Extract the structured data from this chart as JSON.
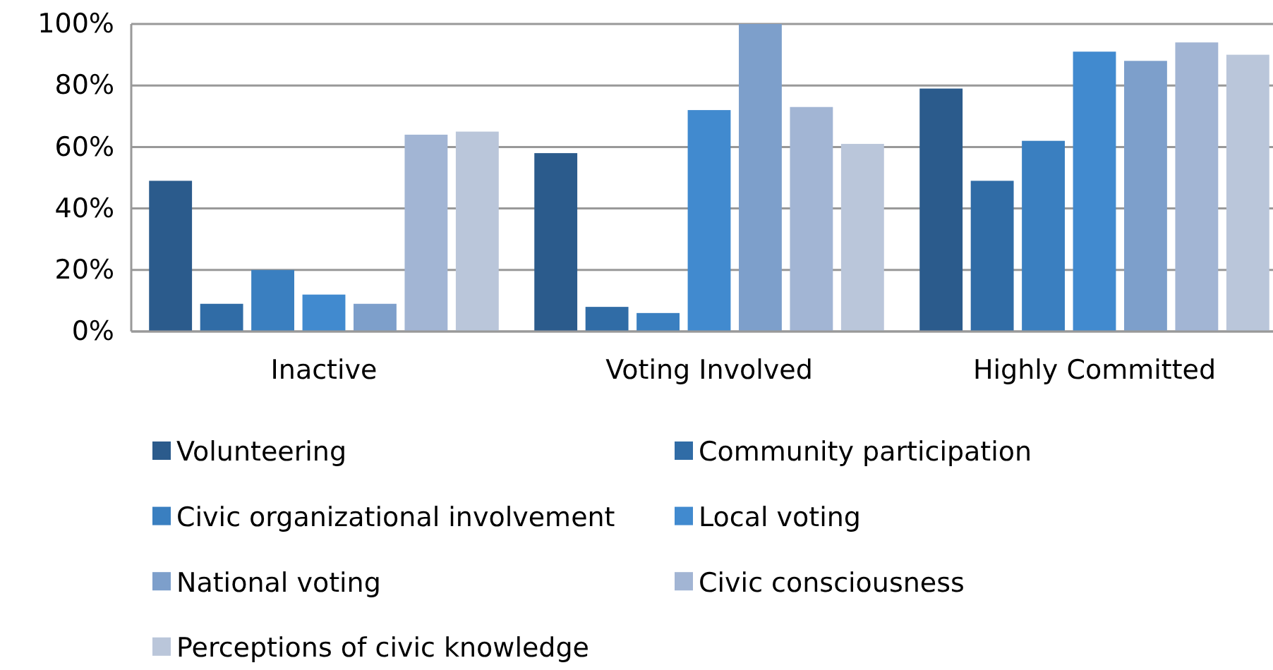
{
  "chart_data": {
    "type": "bar",
    "categories": [
      "Inactive",
      "Voting Involved",
      "Highly Committed"
    ],
    "series": [
      {
        "name": "Volunteering",
        "color": "#2b5b8c",
        "values": [
          49,
          58,
          79
        ]
      },
      {
        "name": "Community participation",
        "color": "#306ca6",
        "values": [
          9,
          8,
          49
        ]
      },
      {
        "name": "Civic organizational involvement",
        "color": "#3a7fc0",
        "values": [
          20,
          6,
          62
        ]
      },
      {
        "name": "Local voting",
        "color": "#418acf",
        "values": [
          12,
          72,
          91
        ]
      },
      {
        "name": "National voting",
        "color": "#7d9fcb",
        "values": [
          9,
          100,
          88
        ]
      },
      {
        "name": "Civic consciousness",
        "color": "#a2b5d4",
        "values": [
          64,
          73,
          94
        ]
      },
      {
        "name": "Perceptions of civic knowledge",
        "color": "#bac6da",
        "values": [
          65,
          61,
          90
        ]
      }
    ],
    "ylim": [
      0,
      100
    ],
    "yticks": [
      {
        "value": 0,
        "label": "0%"
      },
      {
        "value": 20,
        "label": "20%"
      },
      {
        "value": 40,
        "label": "40%"
      },
      {
        "value": 60,
        "label": "60%"
      },
      {
        "value": 80,
        "label": "80%"
      },
      {
        "value": 100,
        "label": "100%"
      }
    ],
    "grid": "y",
    "legend": "bottom"
  }
}
